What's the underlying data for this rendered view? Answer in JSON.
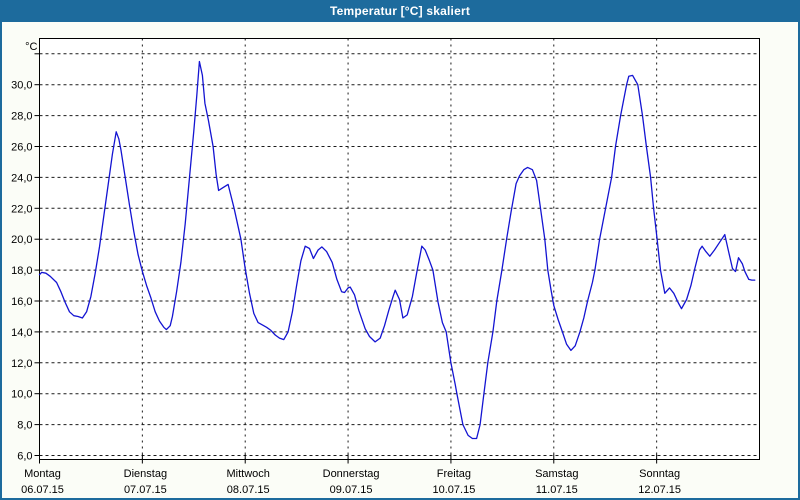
{
  "window": {
    "title": "Temperatur [°C] skaliert"
  },
  "colors": {
    "titlebar_bg": "#1d6b9d",
    "titlebar_text": "#ffffff",
    "window_bg": "#fbfdf7",
    "window_border": "#1d6b9d",
    "plot_bg": "#ffffff",
    "grid": "#1a1a1a",
    "axis": "#000000",
    "line": "#1414d2",
    "label_text": "#000000"
  },
  "chart_data": {
    "type": "line",
    "title": "Temperatur [°C] skaliert",
    "unit_label": "°C",
    "ylim": [
      6,
      33
    ],
    "grid": true,
    "legend": "none",
    "yticks": [
      {
        "v": 32,
        "label": ""
      },
      {
        "v": 30,
        "label": "30,0"
      },
      {
        "v": 28,
        "label": "28,0"
      },
      {
        "v": 26,
        "label": "26,0"
      },
      {
        "v": 24,
        "label": "24,0"
      },
      {
        "v": 22,
        "label": "22,0"
      },
      {
        "v": 20,
        "label": "20,0"
      },
      {
        "v": 18,
        "label": "18,0"
      },
      {
        "v": 16,
        "label": "16,0"
      },
      {
        "v": 14,
        "label": "14,0"
      },
      {
        "v": 12,
        "label": "12,0"
      },
      {
        "v": 10,
        "label": "10,0"
      },
      {
        "v": 8,
        "label": "8,0"
      },
      {
        "v": 6,
        "label": "6,0"
      }
    ],
    "days": [
      {
        "name": "Montag",
        "date": "06.07.15"
      },
      {
        "name": "Dienstag",
        "date": "07.07.15"
      },
      {
        "name": "Mittwoch",
        "date": "08.07.15"
      },
      {
        "name": "Donnerstag",
        "date": "09.07.15"
      },
      {
        "name": "Freitag",
        "date": "10.07.15"
      },
      {
        "name": "Samstag",
        "date": "11.07.15"
      },
      {
        "name": "Sonntag",
        "date": "12.07.15"
      }
    ],
    "x_total_hours": 168,
    "series": [
      {
        "name": "Temperatur",
        "color": "#1414d2",
        "points": [
          [
            0,
            17.7
          ],
          [
            0.5,
            17.85
          ],
          [
            1.5,
            17.8
          ],
          [
            2.5,
            17.6
          ],
          [
            4,
            17.2
          ],
          [
            5,
            16.6
          ],
          [
            6,
            15.9
          ],
          [
            7,
            15.3
          ],
          [
            8,
            15.05
          ],
          [
            9,
            15.0
          ],
          [
            10,
            14.9
          ],
          [
            11,
            15.3
          ],
          [
            12,
            16.3
          ],
          [
            13,
            17.8
          ],
          [
            14,
            19.5
          ],
          [
            15,
            21.5
          ],
          [
            16,
            23.5
          ],
          [
            17,
            25.5
          ],
          [
            17.9,
            26.95
          ],
          [
            18.5,
            26.5
          ],
          [
            19,
            25.8
          ],
          [
            20,
            24.0
          ],
          [
            21,
            22.2
          ],
          [
            22,
            20.5
          ],
          [
            23,
            19.0
          ],
          [
            24,
            17.9
          ],
          [
            25,
            17.0
          ],
          [
            26,
            16.2
          ],
          [
            27,
            15.3
          ],
          [
            28,
            14.7
          ],
          [
            29,
            14.3
          ],
          [
            29.6,
            14.15
          ],
          [
            30.5,
            14.4
          ],
          [
            31,
            15.0
          ],
          [
            32,
            16.6
          ],
          [
            33,
            18.5
          ],
          [
            34,
            21.0
          ],
          [
            35,
            24.0
          ],
          [
            36,
            27.0
          ],
          [
            36.7,
            29.3
          ],
          [
            37.3,
            31.5
          ],
          [
            38,
            30.6
          ],
          [
            38.6,
            28.8
          ],
          [
            39.4,
            27.7
          ],
          [
            40.5,
            26.0
          ],
          [
            41.2,
            24.2
          ],
          [
            41.8,
            23.15
          ],
          [
            42.6,
            23.3
          ],
          [
            44,
            23.55
          ],
          [
            45.4,
            22.0
          ],
          [
            47,
            20.0
          ],
          [
            48,
            18.1
          ],
          [
            49,
            16.5
          ],
          [
            50,
            15.2
          ],
          [
            51,
            14.6
          ],
          [
            52,
            14.45
          ],
          [
            53,
            14.3
          ],
          [
            54,
            14.1
          ],
          [
            55,
            13.8
          ],
          [
            56,
            13.6
          ],
          [
            57,
            13.5
          ],
          [
            58,
            14.0
          ],
          [
            59,
            15.3
          ],
          [
            60,
            17.0
          ],
          [
            61,
            18.6
          ],
          [
            62,
            19.55
          ],
          [
            63,
            19.4
          ],
          [
            63.9,
            18.75
          ],
          [
            65,
            19.3
          ],
          [
            65.9,
            19.5
          ],
          [
            67,
            19.2
          ],
          [
            68.3,
            18.5
          ],
          [
            69.4,
            17.4
          ],
          [
            70.5,
            16.6
          ],
          [
            71.2,
            16.55
          ],
          [
            72,
            16.85
          ],
          [
            72.5,
            16.9
          ],
          [
            73.5,
            16.4
          ],
          [
            74.5,
            15.4
          ],
          [
            76,
            14.2
          ],
          [
            77,
            13.7
          ],
          [
            78.3,
            13.35
          ],
          [
            79.5,
            13.6
          ],
          [
            80.5,
            14.4
          ],
          [
            81.5,
            15.4
          ],
          [
            82.5,
            16.3
          ],
          [
            83,
            16.7
          ],
          [
            84,
            16.1
          ],
          [
            84.8,
            14.9
          ],
          [
            85.8,
            15.1
          ],
          [
            87,
            16.3
          ],
          [
            88,
            17.8
          ],
          [
            89.2,
            19.55
          ],
          [
            90,
            19.3
          ],
          [
            91,
            18.6
          ],
          [
            91.8,
            18.0
          ],
          [
            93,
            15.9
          ],
          [
            94,
            14.6
          ],
          [
            94.9,
            14.0
          ],
          [
            96,
            12.0
          ],
          [
            97,
            10.6
          ],
          [
            97.4,
            10.0
          ],
          [
            98.8,
            8.0
          ],
          [
            100,
            7.3
          ],
          [
            101,
            7.1
          ],
          [
            102,
            7.1
          ],
          [
            102.8,
            8.0
          ],
          [
            103.7,
            10.0
          ],
          [
            104.6,
            12.0
          ],
          [
            105.8,
            14.0
          ],
          [
            106.7,
            16.0
          ],
          [
            107.9,
            18.0
          ],
          [
            109,
            20.0
          ],
          [
            110,
            21.7
          ],
          [
            111.2,
            23.6
          ],
          [
            112,
            24.1
          ],
          [
            113,
            24.5
          ],
          [
            113.9,
            24.65
          ],
          [
            115,
            24.5
          ],
          [
            116,
            23.8
          ],
          [
            116.9,
            22.0
          ],
          [
            117.9,
            20.0
          ],
          [
            118.6,
            18.0
          ],
          [
            119.3,
            16.8
          ],
          [
            120,
            15.7
          ],
          [
            121,
            14.8
          ],
          [
            122,
            14.0
          ],
          [
            123,
            13.2
          ],
          [
            124,
            12.8
          ],
          [
            125,
            13.1
          ],
          [
            126.1,
            14.0
          ],
          [
            127,
            14.9
          ],
          [
            127.9,
            16.0
          ],
          [
            129,
            17.2
          ],
          [
            129.6,
            18.0
          ],
          [
            130.7,
            20.0
          ],
          [
            132.1,
            22.0
          ],
          [
            133.5,
            24.0
          ],
          [
            134.4,
            26.0
          ],
          [
            135.6,
            28.0
          ],
          [
            137,
            30.0
          ],
          [
            137.5,
            30.55
          ],
          [
            138.4,
            30.6
          ],
          [
            139.6,
            30.0
          ],
          [
            140.7,
            28.0
          ],
          [
            141.6,
            26.0
          ],
          [
            142.6,
            24.0
          ],
          [
            143.3,
            22.0
          ],
          [
            144,
            20.3
          ],
          [
            144.9,
            18.0
          ],
          [
            145.9,
            16.5
          ],
          [
            147,
            16.85
          ],
          [
            148,
            16.5
          ],
          [
            149,
            15.9
          ],
          [
            149.8,
            15.5
          ],
          [
            151,
            16.1
          ],
          [
            152,
            17.0
          ],
          [
            152.9,
            18.1
          ],
          [
            154,
            19.3
          ],
          [
            154.6,
            19.55
          ],
          [
            155.5,
            19.2
          ],
          [
            156.4,
            18.9
          ],
          [
            157.5,
            19.3
          ],
          [
            158.7,
            19.8
          ],
          [
            159.9,
            20.3
          ],
          [
            160.8,
            19.2
          ],
          [
            161.7,
            18.1
          ],
          [
            162.4,
            17.9
          ],
          [
            163.1,
            18.8
          ],
          [
            164,
            18.4
          ],
          [
            164.6,
            17.9
          ],
          [
            165.5,
            17.4
          ],
          [
            166.2,
            17.35
          ],
          [
            166.9,
            17.35
          ]
        ]
      }
    ]
  }
}
